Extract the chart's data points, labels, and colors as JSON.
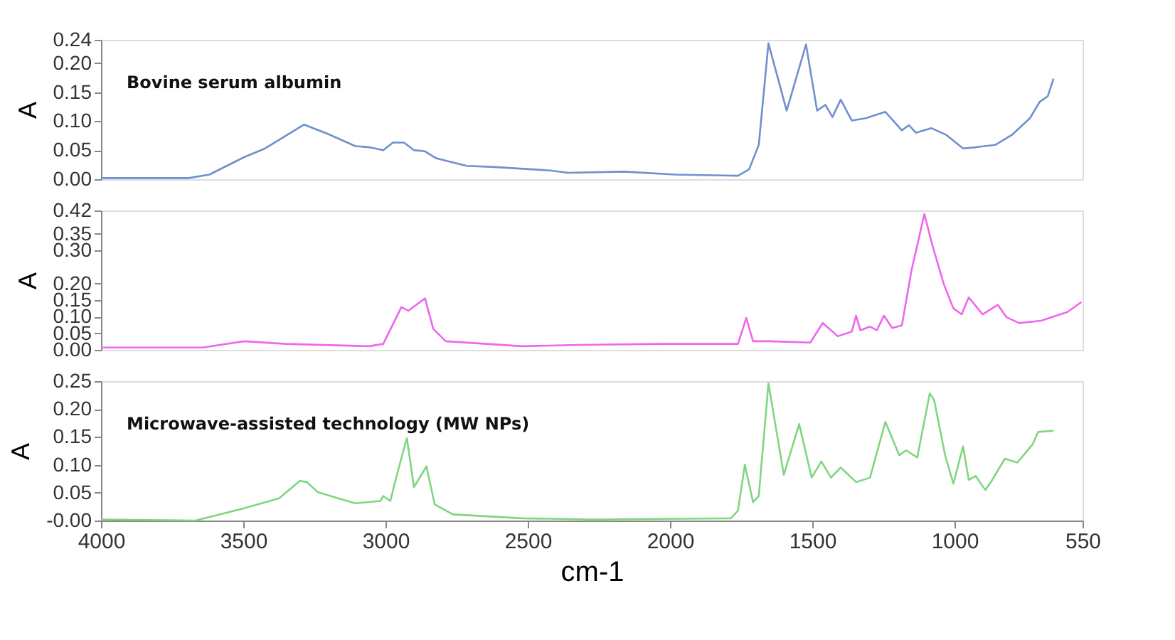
{
  "chart_data": [
    {
      "type": "line",
      "ylabel": "A",
      "xlim": [
        4000,
        550
      ],
      "ylim": [
        0,
        0.24
      ],
      "yticks": [
        {
          "value": 0,
          "label": "0.00"
        },
        0.05,
        {
          "value": 0.1,
          "label": "0.10"
        },
        0.15,
        {
          "value": 0.2,
          "label": "0.20"
        },
        0.24
      ],
      "tick_labels": "y",
      "grid": false,
      "marker": "none",
      "line_style": "solid",
      "series": [
        {
          "name": "Bovine serum albumin",
          "color": "#6f8fcf",
          "x": [
            4000,
            3692,
            3619,
            3497,
            3423,
            3286,
            3203,
            3106,
            3057,
            3008,
            2974,
            2935,
            2900,
            2861,
            2822,
            2715,
            2617,
            2421,
            2358,
            2162,
            1981,
            1761,
            1722,
            1688,
            1654,
            1590,
            1522,
            1483,
            1454,
            1429,
            1400,
            1361,
            1312,
            1243,
            1185,
            1160,
            1136,
            1082,
            1028,
            970,
            926,
            857,
            799,
            735,
            701,
            672,
            652
          ],
          "values": [
            0.002,
            0.002,
            0.008,
            0.038,
            0.053,
            0.094,
            0.078,
            0.057,
            0.055,
            0.05,
            0.063,
            0.063,
            0.05,
            0.048,
            0.036,
            0.023,
            0.021,
            0.015,
            0.011,
            0.013,
            0.008,
            0.006,
            0.017,
            0.059,
            0.234,
            0.118,
            0.232,
            0.118,
            0.128,
            0.107,
            0.137,
            0.101,
            0.105,
            0.116,
            0.084,
            0.093,
            0.08,
            0.088,
            0.076,
            0.053,
            0.055,
            0.059,
            0.076,
            0.105,
            0.133,
            0.143,
            0.173
          ]
        }
      ]
    },
    {
      "type": "line",
      "ylabel": "A",
      "xlim": [
        4000,
        550
      ],
      "ylim": [
        0,
        0.42
      ],
      "yticks": [
        {
          "value": 0,
          "label": "0.00"
        },
        0.05,
        {
          "value": 0.1,
          "label": "0.10"
        },
        0.15,
        {
          "value": 0.2,
          "label": "0.20"
        },
        {
          "value": 0.3,
          "label": "0.30"
        },
        0.35,
        0.42
      ],
      "tick_labels": "y",
      "grid": false,
      "marker": "none",
      "line_style": "solid",
      "series": [
        {
          "color": "#ee66ee",
          "x": [
            4000,
            3643,
            3497,
            3350,
            3057,
            3008,
            2944,
            2920,
            2861,
            2832,
            2788,
            2519,
            2324,
            2030,
            1761,
            1732,
            1708,
            1649,
            1507,
            1463,
            1410,
            1361,
            1346,
            1331,
            1297,
            1273,
            1248,
            1219,
            1185,
            1151,
            1106,
            1077,
            1038,
            1004,
            975,
            950,
            901,
            848,
            818,
            774,
            725,
            696,
            603,
            554
          ],
          "values": [
            0.007,
            0.007,
            0.026,
            0.018,
            0.011,
            0.018,
            0.129,
            0.118,
            0.155,
            0.063,
            0.026,
            0.011,
            0.015,
            0.018,
            0.018,
            0.096,
            0.026,
            0.026,
            0.022,
            0.081,
            0.041,
            0.055,
            0.103,
            0.059,
            0.07,
            0.059,
            0.103,
            0.066,
            0.074,
            0.24,
            0.409,
            0.313,
            0.199,
            0.125,
            0.107,
            0.158,
            0.107,
            0.136,
            0.099,
            0.081,
            0.085,
            0.088,
            0.114,
            0.144
          ]
        }
      ]
    },
    {
      "type": "line",
      "ylabel": "A",
      "xlabel": "cm-1",
      "xlim": [
        4000,
        550
      ],
      "xticks": [
        4000,
        3500,
        3000,
        2500,
        2000,
        1500,
        1000,
        550
      ],
      "ylim": [
        0,
        0.25
      ],
      "yticks": [
        {
          "value": 0,
          "label": "-0.00"
        },
        0.05,
        {
          "value": 0.1,
          "label": "0.10"
        },
        0.15,
        {
          "value": 0.2,
          "label": "0.20"
        },
        0.25
      ],
      "grid": false,
      "marker": "none",
      "line_style": "solid",
      "series": [
        {
          "name": "Microwave-assisted technology (MW NPs)",
          "color": "#7fd67f",
          "x": [
            4000,
            3668,
            3497,
            3374,
            3301,
            3277,
            3238,
            3154,
            3106,
            3018,
            3008,
            2983,
            2961,
            2925,
            2900,
            2856,
            2827,
            2763,
            2519,
            2275,
            1786,
            1761,
            1737,
            1708,
            1688,
            1654,
            1600,
            1546,
            1502,
            1468,
            1434,
            1400,
            1346,
            1297,
            1243,
            1194,
            1170,
            1131,
            1087,
            1072,
            1033,
            1004,
            970,
            950,
            926,
            892,
            872,
            823,
            779,
            725,
            706,
            652
          ],
          "values": [
            0.002,
            0.0,
            0.022,
            0.04,
            0.071,
            0.069,
            0.051,
            0.038,
            0.031,
            0.035,
            0.044,
            0.035,
            0.08,
            0.148,
            0.06,
            0.097,
            0.029,
            0.011,
            0.004,
            0.002,
            0.004,
            0.018,
            0.1,
            0.033,
            0.044,
            0.246,
            0.082,
            0.173,
            0.077,
            0.106,
            0.077,
            0.095,
            0.069,
            0.077,
            0.177,
            0.117,
            0.126,
            0.113,
            0.228,
            0.217,
            0.117,
            0.066,
            0.133,
            0.073,
            0.08,
            0.055,
            0.069,
            0.111,
            0.104,
            0.137,
            0.159,
            0.161
          ]
        }
      ]
    }
  ]
}
